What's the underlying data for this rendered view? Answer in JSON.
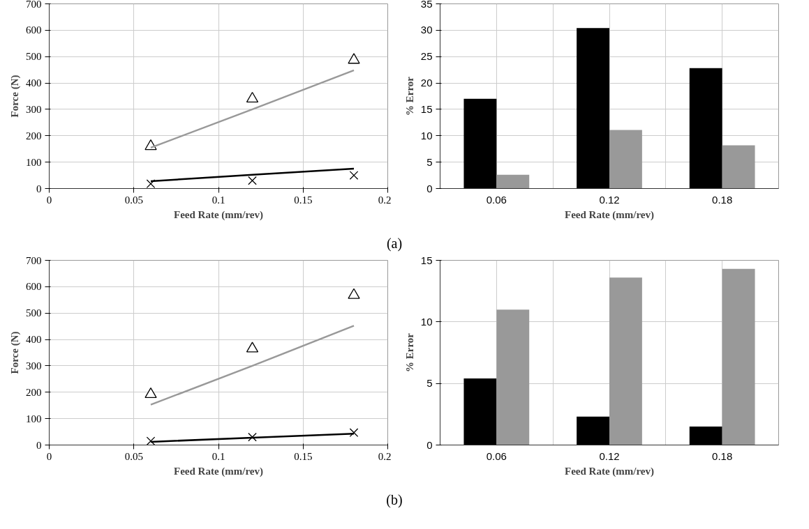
{
  "chart_data": [
    {
      "type": "line",
      "xlabel": "Feed Rate (mm/rev)",
      "ylabel": "Force (N)",
      "xlim": [
        0,
        0.2
      ],
      "xticks": [
        0,
        0.05,
        0.1,
        0.15,
        0.2
      ],
      "ylim": [
        0,
        700
      ],
      "yticks": [
        0,
        100,
        200,
        300,
        400,
        500,
        600,
        700
      ],
      "grid": true,
      "annotations": [
        "(a)"
      ],
      "series": [
        {
          "type": "scatter",
          "marker": "triangle",
          "color": "#000000",
          "x": [
            0.06,
            0.12,
            0.18
          ],
          "values": [
            160,
            340,
            487
          ]
        },
        {
          "type": "line",
          "marker": "none",
          "color": "#999999",
          "x": [
            0.06,
            0.12,
            0.18
          ],
          "values": [
            155,
            300,
            448
          ]
        },
        {
          "type": "scatter",
          "marker": "cross",
          "color": "#000000",
          "x": [
            0.06,
            0.12,
            0.18
          ],
          "values": [
            18,
            30,
            50
          ]
        },
        {
          "type": "line",
          "marker": "none",
          "color": "#000000",
          "x": [
            0.06,
            0.12,
            0.18
          ],
          "values": [
            28,
            52,
            75
          ]
        }
      ]
    },
    {
      "type": "bar",
      "xlabel": "Feed Rate (mm/rev)",
      "ylabel": "% Error",
      "categories": [
        "0.06",
        "0.12",
        "0.18"
      ],
      "ylim": [
        0,
        35
      ],
      "yticks": [
        0,
        5,
        10,
        15,
        20,
        25,
        30,
        35
      ],
      "grid": true,
      "series": [
        {
          "color": "#000000",
          "values": [
            17,
            30.4,
            22.8
          ]
        },
        {
          "color": "#999999",
          "values": [
            2.6,
            11.1,
            8.2
          ]
        }
      ]
    },
    {
      "type": "line",
      "xlabel": "Feed Rate (mm/rev)",
      "ylabel": "Force (N)",
      "xlim": [
        0,
        0.2
      ],
      "xticks": [
        0,
        0.05,
        0.1,
        0.15,
        0.2
      ],
      "ylim": [
        0,
        700
      ],
      "yticks": [
        0,
        100,
        200,
        300,
        400,
        500,
        600,
        700
      ],
      "grid": true,
      "annotations": [
        "(b)"
      ],
      "series": [
        {
          "type": "scatter",
          "marker": "triangle",
          "color": "#000000",
          "x": [
            0.06,
            0.12,
            0.18
          ],
          "values": [
            192,
            365,
            568
          ]
        },
        {
          "type": "line",
          "marker": "none",
          "color": "#999999",
          "x": [
            0.06,
            0.12,
            0.18
          ],
          "values": [
            153,
            300,
            452
          ]
        },
        {
          "type": "scatter",
          "marker": "cross",
          "color": "#000000",
          "x": [
            0.06,
            0.12,
            0.18
          ],
          "values": [
            15,
            30,
            47
          ]
        },
        {
          "type": "line",
          "marker": "none",
          "color": "#000000",
          "x": [
            0.06,
            0.12,
            0.18
          ],
          "values": [
            12,
            28,
            43
          ]
        }
      ]
    },
    {
      "type": "bar",
      "xlabel": "Feed Rate (mm/rev)",
      "ylabel": "% Error",
      "categories": [
        "0.06",
        "0.12",
        "0.18"
      ],
      "ylim": [
        0,
        15
      ],
      "yticks": [
        0,
        5,
        10,
        15
      ],
      "grid": true,
      "series": [
        {
          "color": "#000000",
          "values": [
            5.4,
            2.3,
            1.5
          ]
        },
        {
          "color": "#999999",
          "values": [
            11,
            13.6,
            14.3
          ]
        }
      ]
    }
  ]
}
